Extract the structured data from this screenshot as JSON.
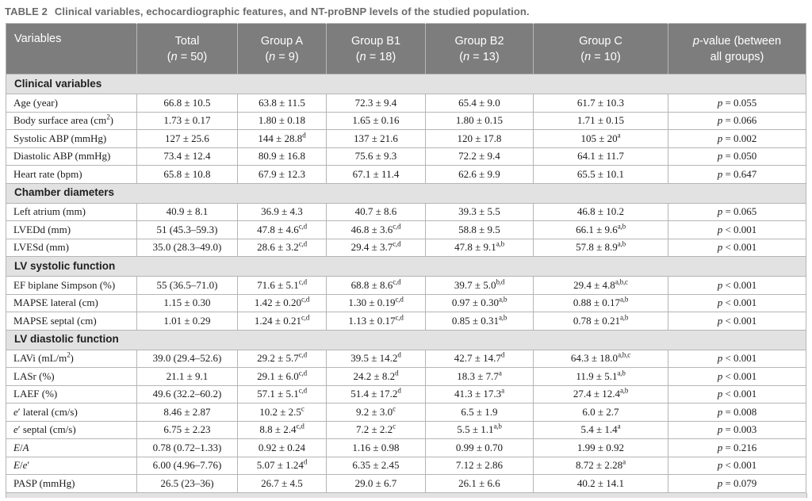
{
  "caption": {
    "label": "TABLE 2",
    "text": "Clinical variables, echocardiographic features, and NT-proBNP levels of the studied population."
  },
  "colors": {
    "header_bg": "#7d7d7d",
    "section_bg": "#e2e2e2",
    "border": "#b5b5b5",
    "caption_color": "#6b6b6b"
  },
  "table": {
    "columns": [
      {
        "label": "Variables",
        "sub": ""
      },
      {
        "label": "Total",
        "sub": "(*n* = 50)"
      },
      {
        "label": "Group A",
        "sub": "(*n* = 9)"
      },
      {
        "label": "Group B1",
        "sub": "(*n* = 18)"
      },
      {
        "label": "Group B2",
        "sub": "(*n* = 13)"
      },
      {
        "label": "Group C",
        "sub": "(*n* = 10)"
      },
      {
        "label": "*p*-value (between",
        "sub": "all groups)"
      }
    ],
    "sections": [
      {
        "name": "Clinical variables",
        "rows": [
          {
            "variable": "Age (year)",
            "values": [
              "66.8 ± 10.5",
              "63.8 ± 11.5",
              "72.3 ± 9.4",
              "65.4 ± 9.0",
              "61.7 ± 10.3"
            ],
            "p": "*p* = 0.055"
          },
          {
            "variable": "Body surface area (cm^2^)",
            "values": [
              "1.73 ± 0.17",
              "1.80 ± 0.18",
              "1.65 ± 0.16",
              "1.80 ± 0.15",
              "1.71 ± 0.15"
            ],
            "p": "*p* = 0.066"
          },
          {
            "variable": "Systolic ABP (mmHg)",
            "values": [
              "127 ± 25.6",
              "144 ± 28.8^d^",
              "137 ± 21.6",
              "120 ± 17.8",
              "105 ± 20^a^"
            ],
            "p": "*p* = 0.002"
          },
          {
            "variable": "Diastolic ABP (mmHg)",
            "values": [
              "73.4 ± 12.4",
              "80.9 ± 16.8",
              "75.6 ± 9.3",
              "72.2 ± 9.4",
              "64.1 ± 11.7"
            ],
            "p": "*p* = 0.050"
          },
          {
            "variable": "Heart rate (bpm)",
            "values": [
              "65.8 ± 10.8",
              "67.9 ± 12.3",
              "67.1 ± 11.4",
              "62.6 ± 9.9",
              "65.5 ± 10.1"
            ],
            "p": "*p* = 0.647"
          }
        ]
      },
      {
        "name": "Chamber diameters",
        "rows": [
          {
            "variable": "Left atrium (mm)",
            "values": [
              "40.9 ± 8.1",
              "36.9 ± 4.3",
              "40.7 ± 8.6",
              "39.3 ± 5.5",
              "46.8 ± 10.2"
            ],
            "p": "*p* = 0.065"
          },
          {
            "variable": "LVEDd (mm)",
            "values": [
              "51 (45.3–59.3)",
              "47.8 ± 4.6^c,d^",
              "46.8 ± 3.6^c,d^",
              "58.8 ± 9.5",
              "66.1 ± 9.6^a,b^"
            ],
            "p": "*p* < 0.001"
          },
          {
            "variable": "LVESd (mm)",
            "values": [
              "35.0 (28.3–49.0)",
              "28.6 ± 3.2^c,d^",
              "29.4 ± 3.7^c,d^",
              "47.8 ± 9.1^a,b^",
              "57.8 ± 8.9^a,b^"
            ],
            "p": "*p* < 0.001"
          }
        ]
      },
      {
        "name": "LV systolic function",
        "rows": [
          {
            "variable": "EF biplane Simpson (%)",
            "values": [
              "55 (36.5–71.0)",
              "71.6 ± 5.1^c,d^",
              "68.8 ± 8.6^c,d^",
              "39.7 ± 5.0^b,d^",
              "29.4 ± 4.8^a,b,c^"
            ],
            "p": "*p* < 0.001"
          },
          {
            "variable": "MAPSE lateral (cm)",
            "values": [
              "1.15 ± 0.30",
              "1.42 ± 0.20^c,d^",
              "1.30 ± 0.19^c,d^",
              "0.97 ± 0.30^a,b^",
              "0.88 ± 0.17^a,b^"
            ],
            "p": "*p* < 0.001"
          },
          {
            "variable": "MAPSE septal (cm)",
            "values": [
              "1.01 ± 0.29",
              "1.24 ± 0.21^c,d^",
              "1.13 ± 0.17^c,d^",
              "0.85 ± 0.31^a,b^",
              "0.78 ± 0.21^a,b^"
            ],
            "p": "*p* < 0.001"
          }
        ]
      },
      {
        "name": "LV diastolic function",
        "rows": [
          {
            "variable": "LAVi (mL/m^2^)",
            "values": [
              "39.0 (29.4–52.6)",
              "29.2 ± 5.7^c,d^",
              "39.5 ± 14.2^d^",
              "42.7 ± 14.7^d^",
              "64.3 ± 18.0^a,b,c^"
            ],
            "p": "*p* < 0.001"
          },
          {
            "variable": "LASr (%)",
            "values": [
              "21.1 ± 9.1",
              "29.1 ± 6.0^c,d^",
              "24.2 ± 8.2^d^",
              "18.3 ± 7.7^a^",
              "11.9 ± 5.1^a,b^"
            ],
            "p": "*p* < 0.001"
          },
          {
            "variable": "LAEF (%)",
            "values": [
              "49.6 (32.2–60.2)",
              "57.1 ± 5.1^c,d^",
              "51.4 ± 17.2^d^",
              "41.3 ± 17.3^a^",
              "27.4 ± 12.4^a,b^"
            ],
            "p": "*p* < 0.001"
          },
          {
            "variable": "*e*′ lateral (cm/s)",
            "values": [
              "8.46 ± 2.87",
              "10.2 ± 2.5^c^",
              "9.2 ± 3.0^c^",
              "6.5 ± 1.9",
              "6.0 ± 2.7"
            ],
            "p": "*p* = 0.008"
          },
          {
            "variable": "*e*′ septal (cm/s)",
            "values": [
              "6.75 ± 2.23",
              "8.8 ± 2.4^c,d^",
              "7.2 ± 2.2^c^",
              "5.5 ± 1.1^a,b^",
              "5.4 ± 1.4^a^"
            ],
            "p": "*p* = 0.003"
          },
          {
            "variable": "*E*/*A*",
            "values": [
              "0.78 (0.72–1.33)",
              "0.92 ± 0.24",
              "1.16 ± 0.98",
              "0.99 ± 0.70",
              "1.99 ± 0.92"
            ],
            "p": "*p* = 0.216"
          },
          {
            "variable": "*E*/*e*′",
            "values": [
              "6.00 (4.96–7.76)",
              "5.07 ± 1.24^d^",
              "6.35 ± 2.45",
              "7.12 ± 2.86",
              "8.72 ± 2.28^a^"
            ],
            "p": "*p* < 0.001"
          },
          {
            "variable": "PASP (mmHg)",
            "values": [
              "26.5 (23–36)",
              "26.7 ± 4.5",
              "29.0 ± 6.7",
              "26.1 ± 6.6",
              "40.2 ± 14.1"
            ],
            "p": "*p* = 0.079"
          }
        ]
      }
    ]
  }
}
